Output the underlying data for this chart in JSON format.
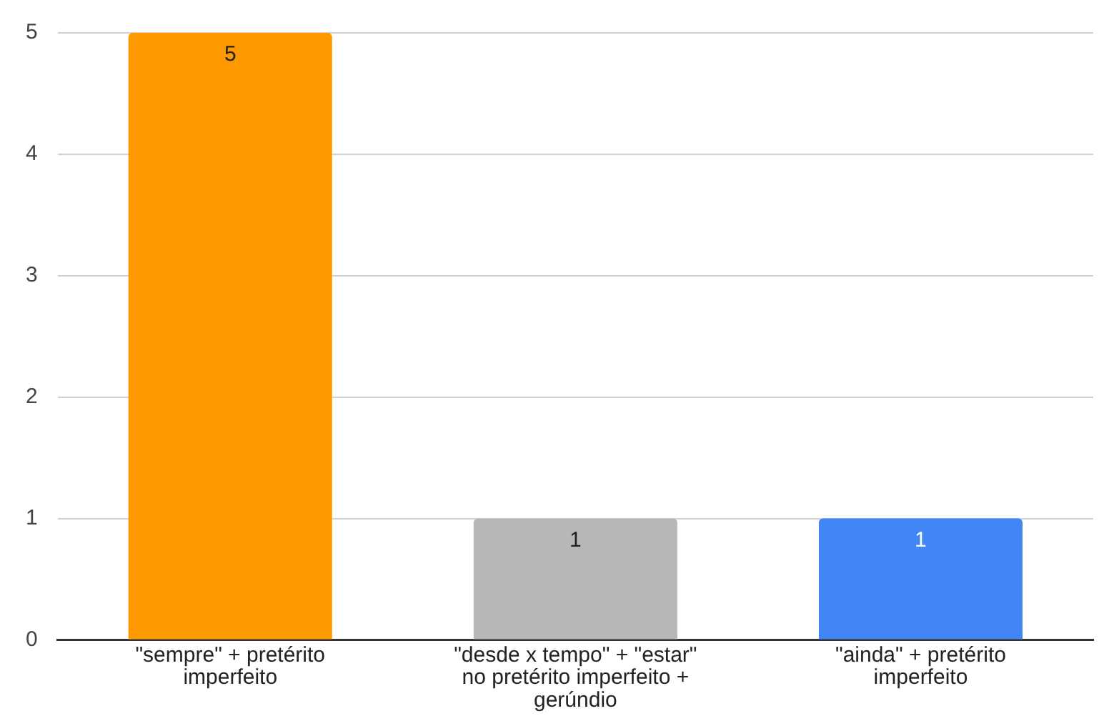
{
  "chart_data": {
    "type": "bar",
    "categories": [
      "\"sempre\" + pretérito imperfeito",
      "\"desde x tempo\" + \"estar\" no pretérito imperfeito + gerúndio",
      "\"ainda\" + pretérito imperfeito"
    ],
    "values": [
      5,
      1,
      1
    ],
    "colors": [
      "#ff9900",
      "#b7b7b7",
      "#4285f4"
    ],
    "ylim": [
      0,
      5
    ],
    "yticks": [
      0,
      1,
      2,
      3,
      4,
      5
    ],
    "grid": "y",
    "legend": false,
    "data_labels": true
  }
}
